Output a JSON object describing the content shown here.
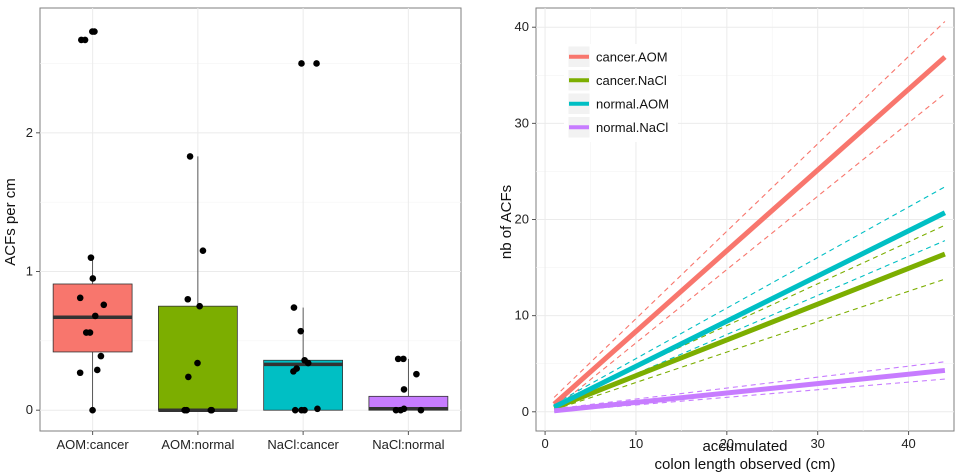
{
  "chart_data": [
    {
      "type": "box",
      "xlabel": "",
      "ylabel": "ACFs per cm",
      "ylim": [
        -0.15,
        2.9
      ],
      "yticks": [
        0,
        1,
        2
      ],
      "grid": true,
      "groups": [
        {
          "name": "AOM:cancer",
          "color": "#f8766d",
          "q1": 0.42,
          "median": 0.67,
          "q3": 0.91,
          "min": 0.0,
          "max": 1.1,
          "points": [
            2.73,
            2.73,
            2.67,
            2.67,
            1.1,
            0.95,
            0.81,
            0.76,
            0.68,
            0.56,
            0.56,
            0.39,
            0.29,
            0.27,
            0.0
          ]
        },
        {
          "name": "AOM:normal",
          "color": "#7cae00",
          "q1": 0.0,
          "median": 0.0,
          "q3": 0.75,
          "min": 0.0,
          "max": 1.83,
          "points": [
            1.83,
            1.15,
            0.8,
            0.75,
            0.34,
            0.24,
            0.0,
            0.0,
            0.0,
            0.0
          ]
        },
        {
          "name": "NaCl:cancer",
          "color": "#00bfc4",
          "q1": 0.0,
          "median": 0.33,
          "q3": 0.36,
          "min": 0.0,
          "max": 0.74,
          "points": [
            2.5,
            2.5,
            0.74,
            0.57,
            0.36,
            0.34,
            0.3,
            0.28,
            0.01,
            0.0,
            0.0,
            0.0
          ]
        },
        {
          "name": "NaCl:normal",
          "color": "#c77cff",
          "q1": 0.0,
          "median": 0.01,
          "q3": 0.1,
          "min": 0.0,
          "max": 0.37,
          "points": [
            0.37,
            0.37,
            0.26,
            0.15,
            0.01,
            0.0,
            0.0,
            0.0
          ]
        }
      ]
    },
    {
      "type": "line",
      "xlabel": "accumulated",
      "xlabel2": "colon length observed (cm)",
      "ylabel": "nb of ACFs",
      "xlim": [
        -1,
        45
      ],
      "ylim": [
        -2,
        42
      ],
      "xticks": [
        0,
        10,
        20,
        30,
        40
      ],
      "yticks": [
        0,
        10,
        20,
        30,
        40
      ],
      "grid": true,
      "legend_position": "top-left",
      "series": [
        {
          "name": "cancer.AOM",
          "color": "#f8766d",
          "x": [
            1,
            44
          ],
          "y": [
            0.8,
            36.9
          ],
          "lower": [
            0.3,
            33.1
          ],
          "upper": [
            1.5,
            40.6
          ]
        },
        {
          "name": "cancer.NaCl",
          "color": "#7cae00",
          "x": [
            1,
            44
          ],
          "y": [
            0.4,
            16.4
          ],
          "lower": [
            0.2,
            13.8
          ],
          "upper": [
            0.7,
            19.4
          ]
        },
        {
          "name": "normal.AOM",
          "color": "#00bfc4",
          "x": [
            1,
            44
          ],
          "y": [
            0.5,
            20.7
          ],
          "lower": [
            0.3,
            17.8
          ],
          "upper": [
            0.8,
            23.4
          ]
        },
        {
          "name": "normal.NaCl",
          "color": "#c77cff",
          "x": [
            1,
            44
          ],
          "y": [
            0.1,
            4.3
          ],
          "lower": [
            0.0,
            3.4
          ],
          "upper": [
            0.3,
            5.2
          ]
        }
      ]
    }
  ]
}
